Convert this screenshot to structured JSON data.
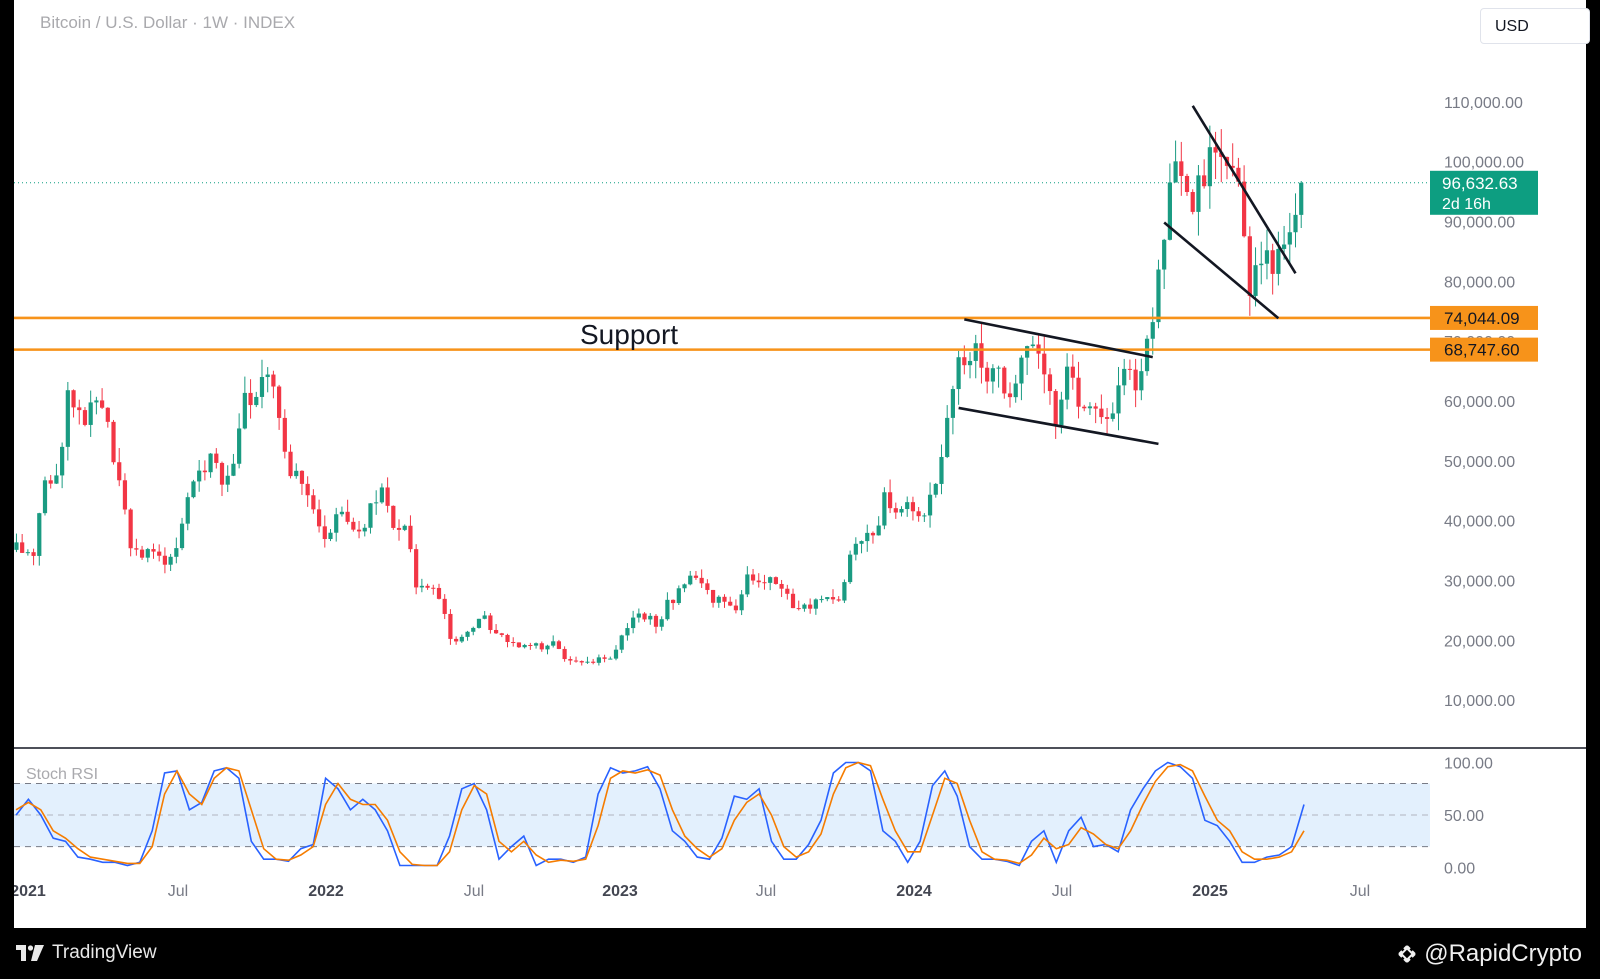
{
  "header": {
    "title": "Bitcoin / U.S. Dollar · 1W · INDEX",
    "currency": "USD"
  },
  "footer": {
    "brand": "TradingView",
    "watermark": "@RapidCrypto"
  },
  "colors": {
    "up": "#1a9b82",
    "down": "#f23645",
    "support": "#f7931a",
    "stoch_k": "#2962ff",
    "stoch_d": "#f57c00",
    "price_tag": "#0d9e81"
  },
  "chart_data": [
    {
      "type": "candlestick",
      "title": "Bitcoin / U.S. Dollar · 1W · INDEX",
      "x_labels": [
        "2021",
        "Jul",
        "2022",
        "Jul",
        "2023",
        "Jul",
        "2024",
        "Jul",
        "2025",
        "Jul"
      ],
      "y_ticks": [
        "110,000.00",
        "100,000.00",
        "90,000.00",
        "80,000.00",
        "70,000.00",
        "60,000.00",
        "50,000.00",
        "40,000.00",
        "30,000.00",
        "20,000.00",
        "10,000.00"
      ],
      "ylim": [
        3500,
        120500
      ],
      "x_range": [
        "2021-01-01",
        "2025-09-01"
      ],
      "series_closes": [
        {
          "date": "2021-01-04",
          "close": 36000
        },
        {
          "date": "2021-01-25",
          "close": 34000
        },
        {
          "date": "2021-02-08",
          "close": 47000
        },
        {
          "date": "2021-02-22",
          "close": 46500
        },
        {
          "date": "2021-03-08",
          "close": 61000
        },
        {
          "date": "2021-03-22",
          "close": 57000
        },
        {
          "date": "2021-04-12",
          "close": 60000
        },
        {
          "date": "2021-04-26",
          "close": 56000
        },
        {
          "date": "2021-05-10",
          "close": 46000
        },
        {
          "date": "2021-05-24",
          "close": 36000
        },
        {
          "date": "2021-06-07",
          "close": 35000
        },
        {
          "date": "2021-06-21",
          "close": 34000
        },
        {
          "date": "2021-07-05",
          "close": 33500
        },
        {
          "date": "2021-07-19",
          "close": 35500
        },
        {
          "date": "2021-08-02",
          "close": 44000
        },
        {
          "date": "2021-08-16",
          "close": 48000
        },
        {
          "date": "2021-08-30",
          "close": 50000
        },
        {
          "date": "2021-09-13",
          "close": 47000
        },
        {
          "date": "2021-09-27",
          "close": 48000
        },
        {
          "date": "2021-10-11",
          "close": 60000
        },
        {
          "date": "2021-10-25",
          "close": 61000
        },
        {
          "date": "2021-11-08",
          "close": 65000
        },
        {
          "date": "2021-11-22",
          "close": 57000
        },
        {
          "date": "2021-12-06",
          "close": 48000
        },
        {
          "date": "2021-12-20",
          "close": 47000
        },
        {
          "date": "2022-01-03",
          "close": 42000
        },
        {
          "date": "2022-01-17",
          "close": 36000
        },
        {
          "date": "2022-01-31",
          "close": 42000
        },
        {
          "date": "2022-02-14",
          "close": 39000
        },
        {
          "date": "2022-02-28",
          "close": 38500
        },
        {
          "date": "2022-03-14",
          "close": 42000
        },
        {
          "date": "2022-03-28",
          "close": 46000
        },
        {
          "date": "2022-04-11",
          "close": 40000
        },
        {
          "date": "2022-04-25",
          "close": 38500
        },
        {
          "date": "2022-05-09",
          "close": 30000
        },
        {
          "date": "2022-05-23",
          "close": 29500
        },
        {
          "date": "2022-06-06",
          "close": 28000
        },
        {
          "date": "2022-06-20",
          "close": 20000
        },
        {
          "date": "2022-07-04",
          "close": 20500
        },
        {
          "date": "2022-07-18",
          "close": 22500
        },
        {
          "date": "2022-08-01",
          "close": 23500
        },
        {
          "date": "2022-08-15",
          "close": 21000
        },
        {
          "date": "2022-08-29",
          "close": 20000
        },
        {
          "date": "2022-09-12",
          "close": 19500
        },
        {
          "date": "2022-09-26",
          "close": 19300
        },
        {
          "date": "2022-10-10",
          "close": 19200
        },
        {
          "date": "2022-10-24",
          "close": 20500
        },
        {
          "date": "2022-11-07",
          "close": 16500
        },
        {
          "date": "2022-11-21",
          "close": 16500
        },
        {
          "date": "2022-12-05",
          "close": 17100
        },
        {
          "date": "2022-12-19",
          "close": 16800
        },
        {
          "date": "2023-01-02",
          "close": 17000
        },
        {
          "date": "2023-01-16",
          "close": 21500
        },
        {
          "date": "2023-01-30",
          "close": 23500
        },
        {
          "date": "2023-02-13",
          "close": 24500
        },
        {
          "date": "2023-02-27",
          "close": 22400
        },
        {
          "date": "2023-03-13",
          "close": 26500
        },
        {
          "date": "2023-03-27",
          "close": 28000
        },
        {
          "date": "2023-04-10",
          "close": 30300
        },
        {
          "date": "2023-04-24",
          "close": 29300
        },
        {
          "date": "2023-05-08",
          "close": 27000
        },
        {
          "date": "2023-05-22",
          "close": 27200
        },
        {
          "date": "2023-06-05",
          "close": 25800
        },
        {
          "date": "2023-06-19",
          "close": 30500
        },
        {
          "date": "2023-07-03",
          "close": 30300
        },
        {
          "date": "2023-07-17",
          "close": 29800
        },
        {
          "date": "2023-07-31",
          "close": 29100
        },
        {
          "date": "2023-08-14",
          "close": 26000
        },
        {
          "date": "2023-08-28",
          "close": 25900
        },
        {
          "date": "2023-09-11",
          "close": 26500
        },
        {
          "date": "2023-09-25",
          "close": 27500
        },
        {
          "date": "2023-10-09",
          "close": 26900
        },
        {
          "date": "2023-10-23",
          "close": 34000
        },
        {
          "date": "2023-11-06",
          "close": 37000
        },
        {
          "date": "2023-11-20",
          "close": 37500
        },
        {
          "date": "2023-12-04",
          "close": 43500
        },
        {
          "date": "2023-12-18",
          "close": 43000
        },
        {
          "date": "2024-01-01",
          "close": 44000
        },
        {
          "date": "2024-01-15",
          "close": 41500
        },
        {
          "date": "2024-01-29",
          "close": 43000
        },
        {
          "date": "2024-02-12",
          "close": 52000
        },
        {
          "date": "2024-02-26",
          "close": 62000
        },
        {
          "date": "2024-03-11",
          "close": 68500
        },
        {
          "date": "2024-03-25",
          "close": 69500
        },
        {
          "date": "2024-04-08",
          "close": 65000
        },
        {
          "date": "2024-04-22",
          "close": 64000
        },
        {
          "date": "2024-05-06",
          "close": 61000
        },
        {
          "date": "2024-05-20",
          "close": 69000
        },
        {
          "date": "2024-06-03",
          "close": 69500
        },
        {
          "date": "2024-06-17",
          "close": 64000
        },
        {
          "date": "2024-07-01",
          "close": 57000
        },
        {
          "date": "2024-07-15",
          "close": 68000
        },
        {
          "date": "2024-07-29",
          "close": 58000
        },
        {
          "date": "2024-08-12",
          "close": 59000
        },
        {
          "date": "2024-08-26",
          "close": 57000
        },
        {
          "date": "2024-09-09",
          "close": 60000
        },
        {
          "date": "2024-09-23",
          "close": 64000
        },
        {
          "date": "2024-10-07",
          "close": 63000
        },
        {
          "date": "2024-10-21",
          "close": 69000
        },
        {
          "date": "2024-11-04",
          "close": 80000
        },
        {
          "date": "2024-11-18",
          "close": 98000
        },
        {
          "date": "2024-12-02",
          "close": 101000
        },
        {
          "date": "2024-12-16",
          "close": 94000
        },
        {
          "date": "2024-12-30",
          "close": 98000
        },
        {
          "date": "2025-01-13",
          "close": 104000
        },
        {
          "date": "2025-01-27",
          "close": 100000
        },
        {
          "date": "2025-02-10",
          "close": 96000
        },
        {
          "date": "2025-02-24",
          "close": 80000
        },
        {
          "date": "2025-03-10",
          "close": 84000
        },
        {
          "date": "2025-03-24",
          "close": 83500
        },
        {
          "date": "2025-04-07",
          "close": 84500
        },
        {
          "date": "2025-04-21",
          "close": 94500
        },
        {
          "date": "2025-04-28",
          "close": 96632.63
        }
      ],
      "support_levels": [
        {
          "value": 74044.09,
          "label": "74,044.09"
        },
        {
          "value": 68747.6,
          "label": "68,747.60"
        }
      ],
      "annotations": [
        {
          "text": "Support"
        }
      ],
      "trendlines": [
        {
          "points": [
            {
              "date": "2024-03-11",
              "price": 73800
            },
            {
              "date": "2024-10-28",
              "price": 67500
            }
          ]
        },
        {
          "points": [
            {
              "date": "2024-03-04",
              "price": 59000
            },
            {
              "date": "2024-11-04",
              "price": 53000
            }
          ]
        },
        {
          "points": [
            {
              "date": "2024-11-11",
              "price": 90000
            },
            {
              "date": "2025-03-31",
              "price": 74000
            }
          ]
        },
        {
          "points": [
            {
              "date": "2024-12-16",
              "price": 109500
            },
            {
              "date": "2025-04-21",
              "price": 81500
            }
          ]
        }
      ],
      "last_price": {
        "label": "96,632.63",
        "countdown": "2d 16h",
        "value": 96632.63
      }
    },
    {
      "type": "line",
      "title": "Stoch RSI",
      "ylim": [
        -8,
        110
      ],
      "y_ticks": [
        "100.00",
        "50.00",
        "0.00"
      ],
      "band": [
        20,
        80
      ],
      "series": [
        {
          "values": [
            50,
            65,
            50,
            28,
            25,
            10,
            8,
            5,
            5,
            2,
            5,
            35,
            90,
            92,
            55,
            62,
            92,
            95,
            85,
            25,
            8,
            8,
            6,
            18,
            22,
            85,
            75,
            55,
            65,
            55,
            35,
            2,
            2,
            2,
            2,
            30,
            75,
            80,
            55,
            8,
            20,
            30,
            2,
            8,
            8,
            5,
            10,
            70,
            95,
            90,
            92,
            96,
            75,
            35,
            25,
            10,
            8,
            28,
            68,
            65,
            75,
            25,
            8,
            8,
            22,
            45,
            90,
            100,
            100,
            92,
            35,
            25,
            5,
            25,
            78,
            92,
            68,
            20,
            8,
            8,
            6,
            2,
            25,
            35,
            5,
            35,
            48,
            20,
            22,
            15,
            55,
            75,
            92,
            100,
            96,
            85,
            45,
            40,
            25,
            5,
            5,
            10,
            12,
            20,
            60
          ]
        },
        {
          "values": [
            55,
            62,
            55,
            35,
            28,
            18,
            10,
            8,
            6,
            4,
            4,
            20,
            70,
            92,
            70,
            60,
            85,
            95,
            92,
            55,
            18,
            8,
            7,
            12,
            20,
            60,
            80,
            65,
            60,
            60,
            45,
            15,
            3,
            2,
            2,
            15,
            55,
            78,
            70,
            25,
            15,
            25,
            12,
            5,
            7,
            6,
            8,
            40,
            85,
            92,
            90,
            93,
            88,
            55,
            30,
            18,
            10,
            18,
            45,
            62,
            70,
            50,
            20,
            10,
            15,
            32,
            70,
            95,
            100,
            97,
            65,
            35,
            15,
            15,
            50,
            85,
            80,
            45,
            15,
            8,
            7,
            4,
            12,
            28,
            18,
            22,
            38,
            32,
            22,
            18,
            35,
            60,
            82,
            96,
            98,
            92,
            68,
            45,
            35,
            15,
            8,
            8,
            10,
            15,
            35
          ]
        }
      ]
    }
  ]
}
